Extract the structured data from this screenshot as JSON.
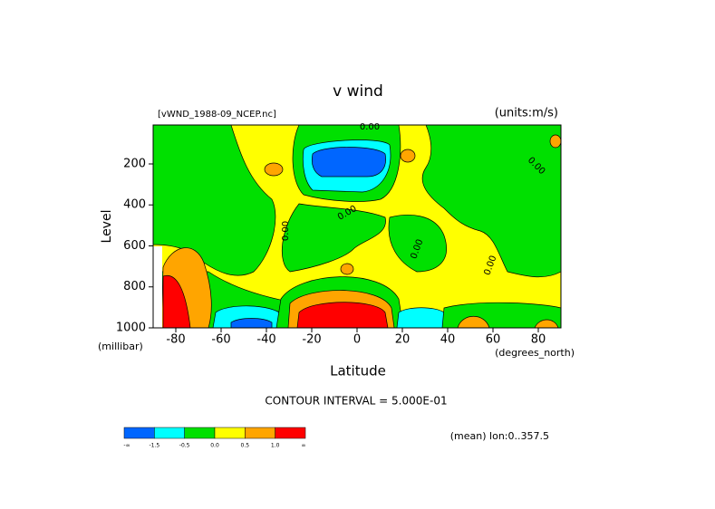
{
  "chart_data": {
    "type": "contour",
    "title": "v wind",
    "source": "[vWND_1988-09_NCEP.nc]",
    "units": "(units:m/s)",
    "xlabel": "Latitude",
    "ylabel": "Level",
    "x_unit": "(degrees_north)",
    "y_unit": "(millibar)",
    "xlim": [
      -90,
      90
    ],
    "xticks": [
      -80,
      -60,
      -40,
      -20,
      0,
      20,
      40,
      60,
      80
    ],
    "ylim": [
      1000,
      10
    ],
    "yticks": [
      200,
      400,
      600,
      800,
      1000
    ],
    "contour_labels": [
      "0.00",
      "0.00",
      "0.00",
      "0.00",
      "0.00",
      "0.00"
    ],
    "contour_interval": "CONTOUR INTERVAL = 5.000E-01",
    "footnote": "(mean) lon:0..357.5",
    "colorbar": {
      "colors": [
        "#0066ff",
        "#00ffff",
        "#00e000",
        "#ffff00",
        "#ffa500",
        "#ff0000"
      ],
      "labels": [
        "-∞",
        "-1.5",
        "-0.5",
        "0.0",
        "0.5",
        "1.0",
        "∞"
      ]
    }
  }
}
